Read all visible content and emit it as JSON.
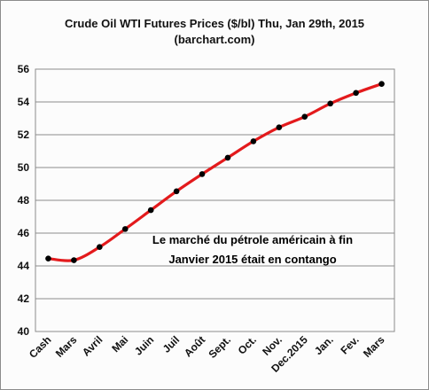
{
  "chart_data": {
    "type": "line",
    "title_line1": "Crude Oil WTI Futures Prices ($/bl) Thu, Jan 29th, 2015",
    "title_line2": "(barchart.com)",
    "categories": [
      "Cash",
      "Mars",
      "Avril",
      "Mai",
      "Juin",
      "Juil",
      "Août",
      "Sept.",
      "Oct.",
      "Nov.",
      "Dec.2015",
      "Jan.",
      "Fev.",
      "Mars"
    ],
    "values": [
      44.45,
      44.35,
      45.15,
      46.25,
      47.4,
      48.55,
      49.6,
      50.6,
      51.6,
      52.45,
      53.1,
      53.9,
      54.55,
      55.1
    ],
    "ylim": [
      40,
      56
    ],
    "yticks": [
      "40",
      "42",
      "44",
      "46",
      "48",
      "50",
      "52",
      "54",
      "56"
    ],
    "grid": true,
    "line_color": "#e31a1c",
    "marker_color": "#000000",
    "annotation_line1": "Le marché du pétrole américain à fin",
    "annotation_line2": "Janvier 2015 était en contango"
  }
}
